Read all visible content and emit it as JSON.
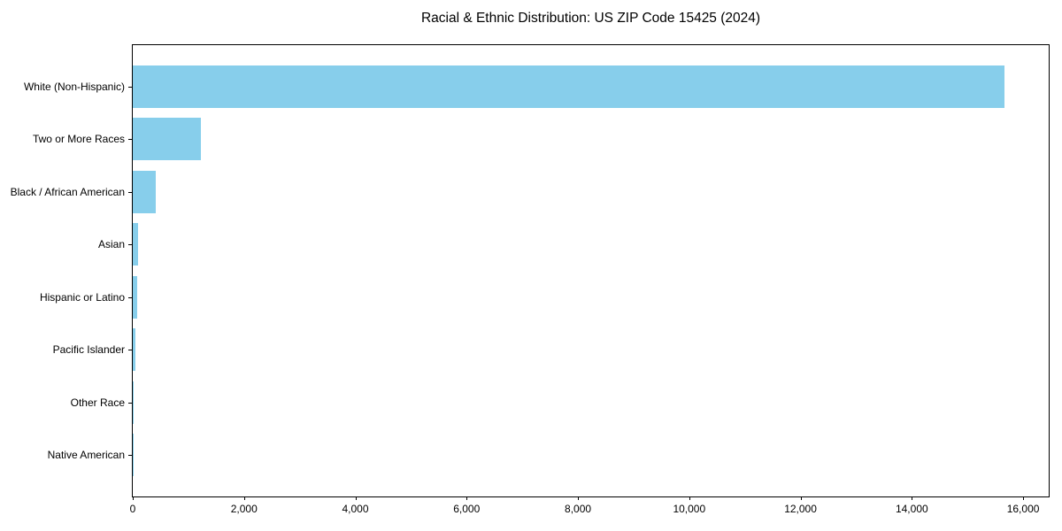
{
  "figure": {
    "background": "#ffffff"
  },
  "chart_data": {
    "type": "bar",
    "orientation": "horizontal",
    "title": "Racial & Ethnic Distribution: US ZIP Code 15425 (2024)",
    "categories": [
      "White (Non-Hispanic)",
      "Two or More Races",
      "Black / African American",
      "Asian",
      "Hispanic or Latino",
      "Pacific Islander",
      "Other Race",
      "Native American"
    ],
    "values": [
      15670,
      1220,
      410,
      90,
      75,
      40,
      12,
      3
    ],
    "bar_color": "#87ceeb",
    "axis_color": "#000000",
    "text_color": "#000000",
    "xlabel": "",
    "ylabel": "",
    "xlim": [
      0,
      16460
    ],
    "x_ticks": [
      0,
      2000,
      4000,
      6000,
      8000,
      10000,
      12000,
      14000,
      16000
    ],
    "x_tick_labels": [
      "0",
      "2,000",
      "4,000",
      "6,000",
      "8,000",
      "10,000",
      "12,000",
      "14,000",
      "16,000"
    ],
    "grid": false,
    "legend_position": "none"
  }
}
